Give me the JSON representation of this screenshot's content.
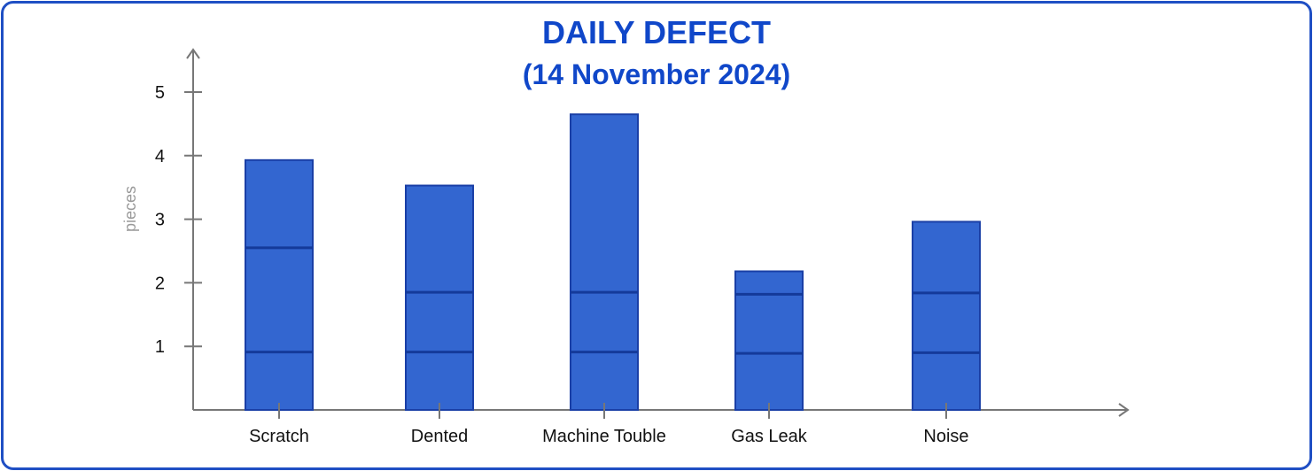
{
  "chart_data": {
    "type": "bar",
    "title": "DAILY DEFECT",
    "subtitle": "(14 November 2024)",
    "ylabel": "pieces",
    "xlabel": "",
    "yticks": [
      1,
      2,
      3,
      4,
      5
    ],
    "ylim": [
      0,
      5.6
    ],
    "categories": [
      "Scratch",
      "Dented",
      "Machine Touble",
      "Gas Leak",
      "Noise"
    ],
    "values": [
      3.93,
      3.53,
      4.65,
      2.18,
      2.96
    ],
    "segment_lines": [
      [
        0.91,
        2.55
      ],
      [
        0.91,
        1.85
      ],
      [
        0.91,
        1.85
      ],
      [
        0.89,
        1.82
      ],
      [
        0.9,
        1.84
      ]
    ],
    "grid": false,
    "colors": {
      "bar_fill": "#3366d0",
      "bar_stroke": "#1a3fa6",
      "title": "#1047c9",
      "axis": "#777777",
      "frame": "#1f4fc4"
    }
  }
}
